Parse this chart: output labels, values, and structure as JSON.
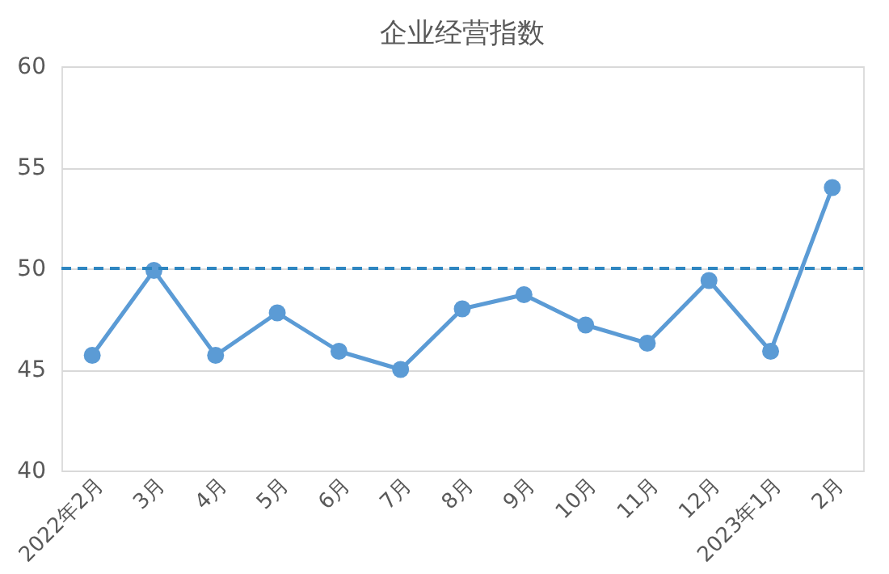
{
  "chart_data": {
    "type": "line",
    "title": "企业经营指数",
    "categories": [
      "2022年2月",
      "3月",
      "4月",
      "5月",
      "6月",
      "7月",
      "8月",
      "9月",
      "10月",
      "11月",
      "12月",
      "2023年1月",
      "2月"
    ],
    "series": [
      {
        "color": "#5b9bd5",
        "values": [
          45.7,
          49.9,
          45.7,
          47.8,
          45.9,
          45.0,
          48.0,
          48.7,
          47.2,
          46.3,
          49.4,
          45.9,
          54.0
        ]
      }
    ],
    "ylim": [
      40,
      60
    ],
    "yticks": [
      40,
      45,
      50,
      55,
      60
    ],
    "grid": "y",
    "marker": "circle",
    "line_style": "solid",
    "legend": false,
    "ref_lines": [
      {
        "axis": "y",
        "value": 50,
        "color": "#2e86c1",
        "line_style": "dashed"
      }
    ]
  }
}
